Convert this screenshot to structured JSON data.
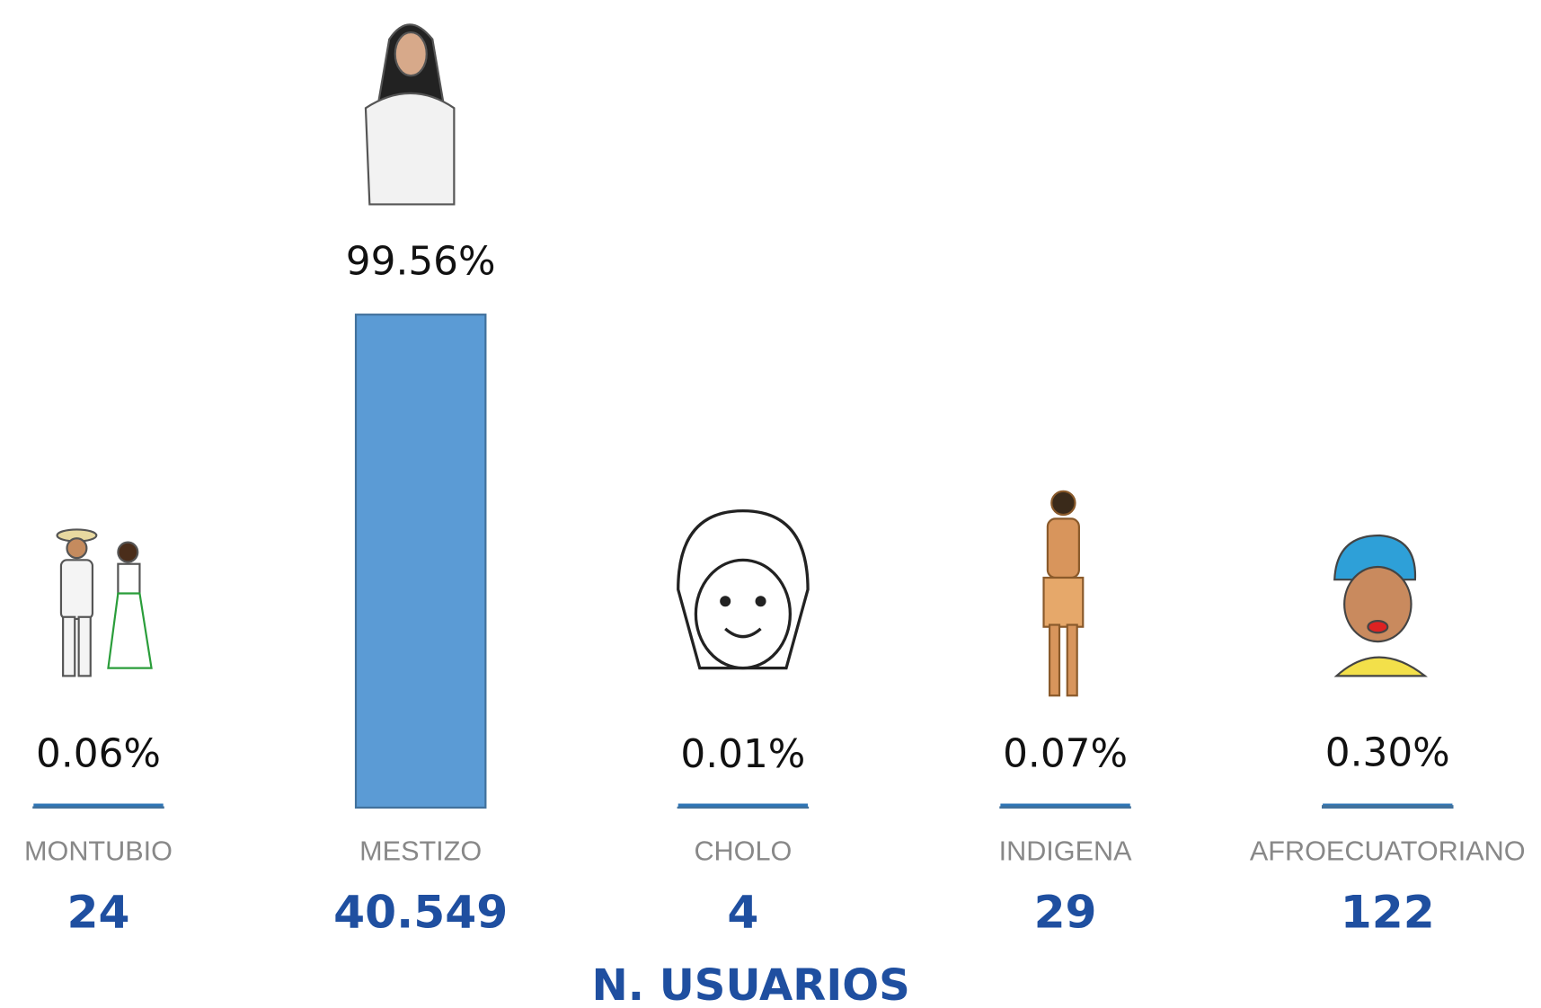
{
  "chart_data": {
    "type": "bar",
    "categories": [
      "MONTUBIO",
      "MESTIZO",
      "CHOLO",
      "INDIGENA",
      "AFROECUATORIANO"
    ],
    "values": [
      0.06,
      99.56,
      0.01,
      0.07,
      0.3
    ],
    "value_labels": [
      "0.06%",
      "99.56%",
      "0.01%",
      "0.07%",
      "0.30%"
    ],
    "color": "#5b9bd5",
    "ylim": [
      0,
      100
    ],
    "counts": [
      24,
      {
        "value": 40549,
        "label": "40.549"
      },
      4,
      29,
      122
    ],
    "x_label": "N. USUARIOS"
  }
}
